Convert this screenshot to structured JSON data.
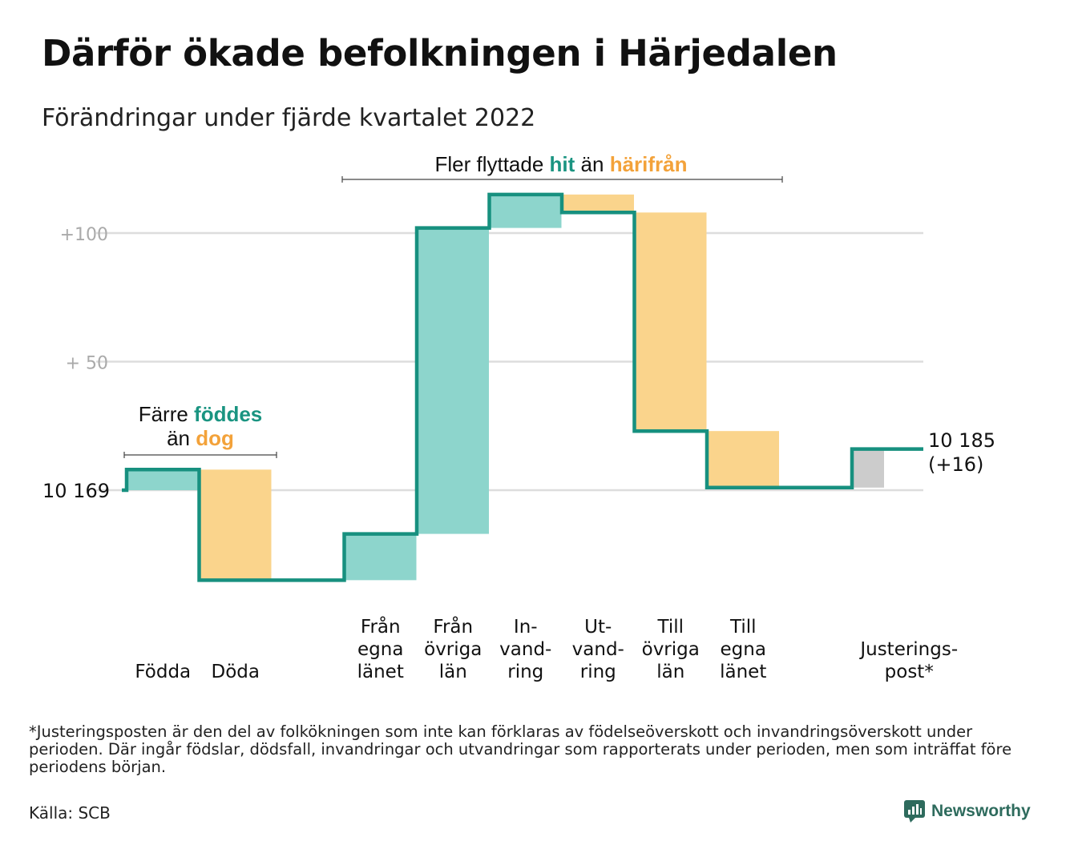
{
  "title": "Därför ökade befolkningen i Härjedalen",
  "subtitle": "Förändringar under fjärde kvartalet 2022",
  "annotations": {
    "births_deaths": {
      "line1_a": "Färre ",
      "line1_b": "föddes",
      "line2_a": "än ",
      "line2_b": "dog"
    },
    "migration": {
      "part_a": "Fler flyttade ",
      "part_b": "hit",
      "part_c": " än ",
      "part_d": "härifrån"
    },
    "start_value": "10 169",
    "end_value": "10 185",
    "end_change": "(+16)"
  },
  "colors": {
    "increase": "#8dd5cc",
    "decrease": "#fad48c",
    "adjustment": "#cccccc",
    "line": "#17907f",
    "grid": "#dddddd",
    "axis_text": "#aaaaaa",
    "teal_text": "#1a9481",
    "orange_text": "#f3a23a"
  },
  "chart_data": {
    "type": "waterfall",
    "baseline": 10169,
    "final": 10185,
    "y_ticks": [
      {
        "value": 0,
        "label": ""
      },
      {
        "value": 50,
        "label": "+ 50"
      },
      {
        "value": 100,
        "label": "+100"
      }
    ],
    "steps": [
      {
        "category": "Födda",
        "label_lines": [
          "",
          "",
          "Födda"
        ],
        "change": 8,
        "kind": "increase"
      },
      {
        "category": "Döda",
        "label_lines": [
          "",
          "",
          "Döda"
        ],
        "change": -43,
        "kind": "decrease"
      },
      {
        "category": "",
        "label_lines": [
          "",
          "",
          ""
        ],
        "change": 0,
        "kind": "none"
      },
      {
        "category": "Från egna länet",
        "label_lines": [
          "Från",
          "egna",
          "länet"
        ],
        "change": 18,
        "kind": "increase"
      },
      {
        "category": "Från övriga län",
        "label_lines": [
          "Från",
          "övriga",
          "län"
        ],
        "change": 119,
        "kind": "increase"
      },
      {
        "category": "In-vandring",
        "label_lines": [
          "In-",
          "vand-",
          "ring"
        ],
        "change": 13,
        "kind": "increase"
      },
      {
        "category": "Ut-vandring",
        "label_lines": [
          "Ut-",
          "vand-",
          "ring"
        ],
        "change": -7,
        "kind": "decrease"
      },
      {
        "category": "Till övriga län",
        "label_lines": [
          "Till",
          "övriga",
          "län"
        ],
        "change": -85,
        "kind": "decrease"
      },
      {
        "category": "Till egna länet",
        "label_lines": [
          "Till",
          "egna",
          "länet"
        ],
        "change": -22,
        "kind": "decrease"
      },
      {
        "category": "",
        "label_lines": [
          "",
          "",
          ""
        ],
        "change": 0,
        "kind": "none"
      },
      {
        "category": "Justeringspost*",
        "label_lines": [
          "",
          "Justerings-",
          "post*"
        ],
        "change": 15,
        "kind": "adjustment"
      }
    ]
  },
  "footnote": "*Justeringsposten är den del av folkökningen som inte kan förklaras av födelseöverskott och invandringsöverskott under perioden. Där ingår födslar, dödsfall, invandringar och utvandringar som rapporterats under perioden, men som inträffat före periodens början.",
  "source": "Källa: SCB",
  "brand": "Newsworthy"
}
